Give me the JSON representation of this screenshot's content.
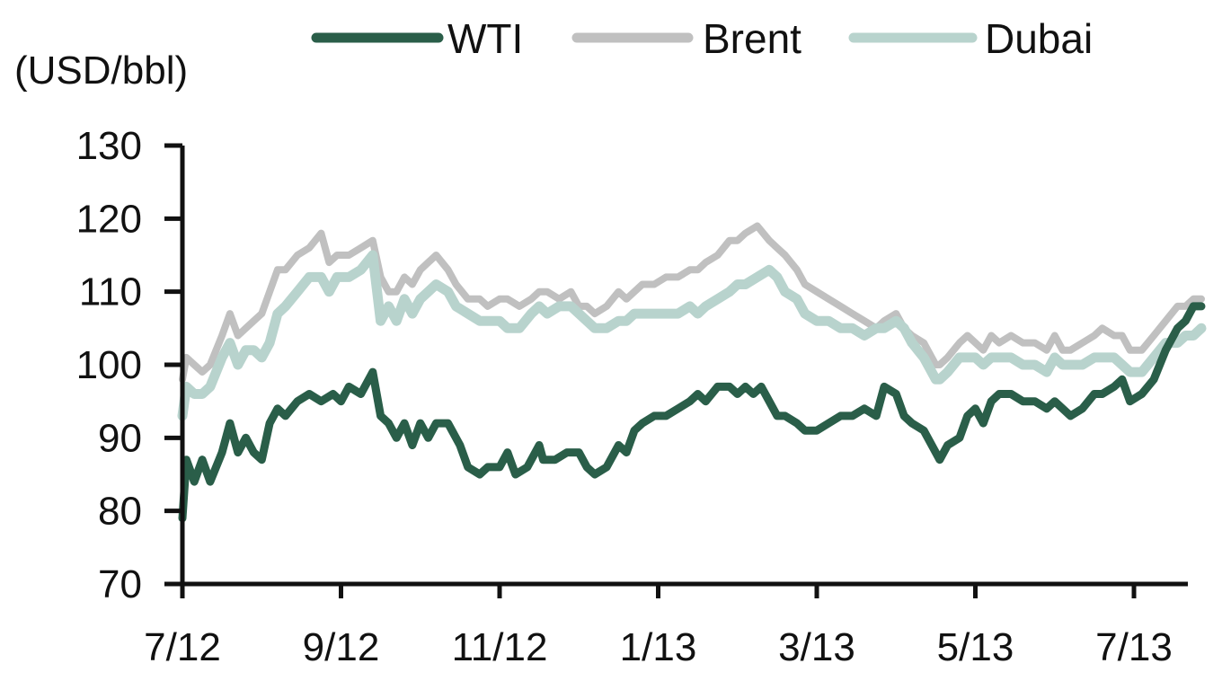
{
  "chart_data": {
    "type": "line",
    "title": "",
    "ylabel": "(USD/bbl)",
    "xlabel": "",
    "ylim": [
      70,
      130
    ],
    "yticks": [
      70,
      80,
      90,
      100,
      110,
      120,
      130
    ],
    "x_range": [
      0,
      12.4
    ],
    "xticks": [
      {
        "label": "7/12",
        "x": 0
      },
      {
        "label": "9/12",
        "x": 2
      },
      {
        "label": "11/12",
        "x": 4
      },
      {
        "label": "1/13",
        "x": 6
      },
      {
        "label": "3/13",
        "x": 8
      },
      {
        "label": "5/13",
        "x": 10
      },
      {
        "label": "7/13",
        "x": 12
      }
    ],
    "grid": false,
    "legend_position": "top",
    "series": [
      {
        "name": "WTI",
        "color": "#2a5e49",
        "points": [
          [
            0,
            79
          ],
          [
            0.05,
            87
          ],
          [
            0.15,
            84
          ],
          [
            0.25,
            87
          ],
          [
            0.35,
            84
          ],
          [
            0.5,
            88
          ],
          [
            0.6,
            92
          ],
          [
            0.7,
            88
          ],
          [
            0.8,
            90
          ],
          [
            0.9,
            88
          ],
          [
            1.0,
            87
          ],
          [
            1.1,
            92
          ],
          [
            1.2,
            94
          ],
          [
            1.3,
            93
          ],
          [
            1.45,
            95
          ],
          [
            1.6,
            96
          ],
          [
            1.75,
            95
          ],
          [
            1.9,
            96
          ],
          [
            2.0,
            95
          ],
          [
            2.1,
            97
          ],
          [
            2.25,
            96
          ],
          [
            2.4,
            99
          ],
          [
            2.5,
            93
          ],
          [
            2.6,
            92
          ],
          [
            2.7,
            90
          ],
          [
            2.8,
            92
          ],
          [
            2.9,
            89
          ],
          [
            3.0,
            92
          ],
          [
            3.1,
            90
          ],
          [
            3.2,
            92
          ],
          [
            3.35,
            92
          ],
          [
            3.5,
            89
          ],
          [
            3.6,
            86
          ],
          [
            3.75,
            85
          ],
          [
            3.85,
            86
          ],
          [
            4.0,
            86
          ],
          [
            4.1,
            88
          ],
          [
            4.2,
            85
          ],
          [
            4.35,
            86
          ],
          [
            4.5,
            89
          ],
          [
            4.55,
            87
          ],
          [
            4.7,
            87
          ],
          [
            4.85,
            88
          ],
          [
            5.0,
            88
          ],
          [
            5.1,
            86
          ],
          [
            5.2,
            85
          ],
          [
            5.35,
            86
          ],
          [
            5.5,
            89
          ],
          [
            5.6,
            88
          ],
          [
            5.7,
            91
          ],
          [
            5.8,
            92
          ],
          [
            5.95,
            93
          ],
          [
            6.1,
            93
          ],
          [
            6.25,
            94
          ],
          [
            6.4,
            95
          ],
          [
            6.5,
            96
          ],
          [
            6.6,
            95
          ],
          [
            6.75,
            97
          ],
          [
            6.9,
            97
          ],
          [
            7.0,
            96
          ],
          [
            7.1,
            97
          ],
          [
            7.2,
            96
          ],
          [
            7.3,
            97
          ],
          [
            7.4,
            95
          ],
          [
            7.5,
            93
          ],
          [
            7.6,
            93
          ],
          [
            7.75,
            92
          ],
          [
            7.85,
            91
          ],
          [
            8.0,
            91
          ],
          [
            8.15,
            92
          ],
          [
            8.3,
            93
          ],
          [
            8.45,
            93
          ],
          [
            8.6,
            94
          ],
          [
            8.75,
            93
          ],
          [
            8.85,
            97
          ],
          [
            9.0,
            96
          ],
          [
            9.1,
            93
          ],
          [
            9.2,
            92
          ],
          [
            9.35,
            91
          ],
          [
            9.5,
            88
          ],
          [
            9.55,
            87
          ],
          [
            9.65,
            89
          ],
          [
            9.8,
            90
          ],
          [
            9.9,
            93
          ],
          [
            10.0,
            94
          ],
          [
            10.1,
            92
          ],
          [
            10.2,
            95
          ],
          [
            10.3,
            96
          ],
          [
            10.45,
            96
          ],
          [
            10.6,
            95
          ],
          [
            10.75,
            95
          ],
          [
            10.9,
            94
          ],
          [
            11.0,
            95
          ],
          [
            11.1,
            94
          ],
          [
            11.2,
            93
          ],
          [
            11.35,
            94
          ],
          [
            11.5,
            96
          ],
          [
            11.6,
            96
          ],
          [
            11.75,
            97
          ],
          [
            11.85,
            98
          ],
          [
            11.95,
            95
          ],
          [
            12.1,
            96
          ],
          [
            12.25,
            98
          ],
          [
            12.4,
            102
          ],
          [
            12.55,
            105
          ],
          [
            12.65,
            106
          ],
          [
            12.75,
            108
          ],
          [
            12.85,
            108
          ]
        ]
      },
      {
        "name": "Brent",
        "color": "#c0c0c0",
        "points": [
          [
            0,
            98
          ],
          [
            0.05,
            101
          ],
          [
            0.15,
            100
          ],
          [
            0.25,
            99
          ],
          [
            0.35,
            100
          ],
          [
            0.5,
            104
          ],
          [
            0.6,
            107
          ],
          [
            0.7,
            104
          ],
          [
            0.8,
            105
          ],
          [
            0.9,
            106
          ],
          [
            1.0,
            107
          ],
          [
            1.1,
            110
          ],
          [
            1.2,
            113
          ],
          [
            1.3,
            113
          ],
          [
            1.45,
            115
          ],
          [
            1.6,
            116
          ],
          [
            1.75,
            118
          ],
          [
            1.85,
            114
          ],
          [
            1.95,
            115
          ],
          [
            2.1,
            115
          ],
          [
            2.25,
            116
          ],
          [
            2.4,
            117
          ],
          [
            2.5,
            112
          ],
          [
            2.6,
            110
          ],
          [
            2.7,
            110
          ],
          [
            2.8,
            112
          ],
          [
            2.9,
            111
          ],
          [
            3.0,
            113
          ],
          [
            3.1,
            114
          ],
          [
            3.2,
            115
          ],
          [
            3.35,
            113
          ],
          [
            3.45,
            111
          ],
          [
            3.6,
            109
          ],
          [
            3.75,
            109
          ],
          [
            3.85,
            108
          ],
          [
            4.0,
            109
          ],
          [
            4.1,
            109
          ],
          [
            4.25,
            108
          ],
          [
            4.4,
            109
          ],
          [
            4.5,
            110
          ],
          [
            4.6,
            110
          ],
          [
            4.75,
            109
          ],
          [
            4.9,
            110
          ],
          [
            5.0,
            108
          ],
          [
            5.1,
            108
          ],
          [
            5.2,
            107
          ],
          [
            5.35,
            108
          ],
          [
            5.5,
            110
          ],
          [
            5.6,
            109
          ],
          [
            5.7,
            110
          ],
          [
            5.8,
            111
          ],
          [
            5.95,
            111
          ],
          [
            6.1,
            112
          ],
          [
            6.25,
            112
          ],
          [
            6.4,
            113
          ],
          [
            6.5,
            113
          ],
          [
            6.6,
            114
          ],
          [
            6.75,
            115
          ],
          [
            6.9,
            117
          ],
          [
            7.0,
            117
          ],
          [
            7.1,
            118
          ],
          [
            7.25,
            119
          ],
          [
            7.4,
            117
          ],
          [
            7.5,
            116
          ],
          [
            7.6,
            115
          ],
          [
            7.75,
            113
          ],
          [
            7.85,
            111
          ],
          [
            8.0,
            110
          ],
          [
            8.15,
            109
          ],
          [
            8.3,
            108
          ],
          [
            8.45,
            107
          ],
          [
            8.6,
            106
          ],
          [
            8.75,
            105
          ],
          [
            8.85,
            106
          ],
          [
            9.0,
            107
          ],
          [
            9.1,
            105
          ],
          [
            9.2,
            104
          ],
          [
            9.35,
            103
          ],
          [
            9.5,
            100
          ],
          [
            9.55,
            100
          ],
          [
            9.65,
            101
          ],
          [
            9.8,
            103
          ],
          [
            9.9,
            104
          ],
          [
            10.0,
            103
          ],
          [
            10.1,
            102
          ],
          [
            10.2,
            104
          ],
          [
            10.3,
            103
          ],
          [
            10.45,
            104
          ],
          [
            10.6,
            103
          ],
          [
            10.75,
            103
          ],
          [
            10.9,
            102
          ],
          [
            11.0,
            104
          ],
          [
            11.1,
            102
          ],
          [
            11.2,
            102
          ],
          [
            11.35,
            103
          ],
          [
            11.5,
            104
          ],
          [
            11.6,
            105
          ],
          [
            11.75,
            104
          ],
          [
            11.85,
            104
          ],
          [
            11.95,
            102
          ],
          [
            12.1,
            102
          ],
          [
            12.25,
            104
          ],
          [
            12.4,
            106
          ],
          [
            12.55,
            108
          ],
          [
            12.65,
            108
          ],
          [
            12.75,
            109
          ],
          [
            12.85,
            109
          ]
        ]
      },
      {
        "name": "Dubai",
        "color": "#b8d3cd",
        "points": [
          [
            0,
            93
          ],
          [
            0.05,
            97
          ],
          [
            0.15,
            96
          ],
          [
            0.25,
            96
          ],
          [
            0.35,
            97
          ],
          [
            0.5,
            101
          ],
          [
            0.6,
            103
          ],
          [
            0.7,
            100
          ],
          [
            0.8,
            102
          ],
          [
            0.9,
            102
          ],
          [
            1.0,
            101
          ],
          [
            1.1,
            103
          ],
          [
            1.2,
            107
          ],
          [
            1.3,
            108
          ],
          [
            1.45,
            110
          ],
          [
            1.6,
            112
          ],
          [
            1.75,
            112
          ],
          [
            1.85,
            110
          ],
          [
            1.95,
            112
          ],
          [
            2.1,
            112
          ],
          [
            2.25,
            113
          ],
          [
            2.4,
            115
          ],
          [
            2.5,
            106
          ],
          [
            2.6,
            108
          ],
          [
            2.7,
            106
          ],
          [
            2.8,
            109
          ],
          [
            2.9,
            107
          ],
          [
            3.0,
            109
          ],
          [
            3.1,
            110
          ],
          [
            3.2,
            111
          ],
          [
            3.35,
            110
          ],
          [
            3.45,
            108
          ],
          [
            3.6,
            107
          ],
          [
            3.75,
            106
          ],
          [
            3.85,
            106
          ],
          [
            4.0,
            106
          ],
          [
            4.1,
            105
          ],
          [
            4.25,
            105
          ],
          [
            4.4,
            107
          ],
          [
            4.5,
            108
          ],
          [
            4.6,
            107
          ],
          [
            4.75,
            108
          ],
          [
            4.9,
            108
          ],
          [
            5.0,
            107
          ],
          [
            5.1,
            106
          ],
          [
            5.2,
            105
          ],
          [
            5.35,
            105
          ],
          [
            5.5,
            106
          ],
          [
            5.6,
            106
          ],
          [
            5.7,
            107
          ],
          [
            5.8,
            107
          ],
          [
            5.95,
            107
          ],
          [
            6.1,
            107
          ],
          [
            6.25,
            107
          ],
          [
            6.4,
            108
          ],
          [
            6.5,
            107
          ],
          [
            6.6,
            108
          ],
          [
            6.75,
            109
          ],
          [
            6.9,
            110
          ],
          [
            7.0,
            111
          ],
          [
            7.1,
            111
          ],
          [
            7.25,
            112
          ],
          [
            7.4,
            113
          ],
          [
            7.5,
            112
          ],
          [
            7.6,
            110
          ],
          [
            7.75,
            109
          ],
          [
            7.85,
            107
          ],
          [
            8.0,
            106
          ],
          [
            8.15,
            106
          ],
          [
            8.3,
            105
          ],
          [
            8.45,
            105
          ],
          [
            8.6,
            104
          ],
          [
            8.75,
            105
          ],
          [
            8.85,
            105
          ],
          [
            9.0,
            106
          ],
          [
            9.1,
            105
          ],
          [
            9.2,
            103
          ],
          [
            9.35,
            101
          ],
          [
            9.5,
            98
          ],
          [
            9.55,
            98
          ],
          [
            9.65,
            99
          ],
          [
            9.8,
            101
          ],
          [
            9.9,
            101
          ],
          [
            10.0,
            101
          ],
          [
            10.1,
            100
          ],
          [
            10.2,
            101
          ],
          [
            10.3,
            101
          ],
          [
            10.45,
            101
          ],
          [
            10.6,
            100
          ],
          [
            10.75,
            100
          ],
          [
            10.9,
            99
          ],
          [
            11.0,
            101
          ],
          [
            11.1,
            100
          ],
          [
            11.2,
            100
          ],
          [
            11.35,
            100
          ],
          [
            11.5,
            101
          ],
          [
            11.6,
            101
          ],
          [
            11.75,
            101
          ],
          [
            11.85,
            100
          ],
          [
            11.95,
            99
          ],
          [
            12.1,
            99
          ],
          [
            12.25,
            101
          ],
          [
            12.4,
            103
          ],
          [
            12.55,
            103
          ],
          [
            12.65,
            104
          ],
          [
            12.75,
            104
          ],
          [
            12.85,
            105
          ]
        ]
      }
    ]
  }
}
